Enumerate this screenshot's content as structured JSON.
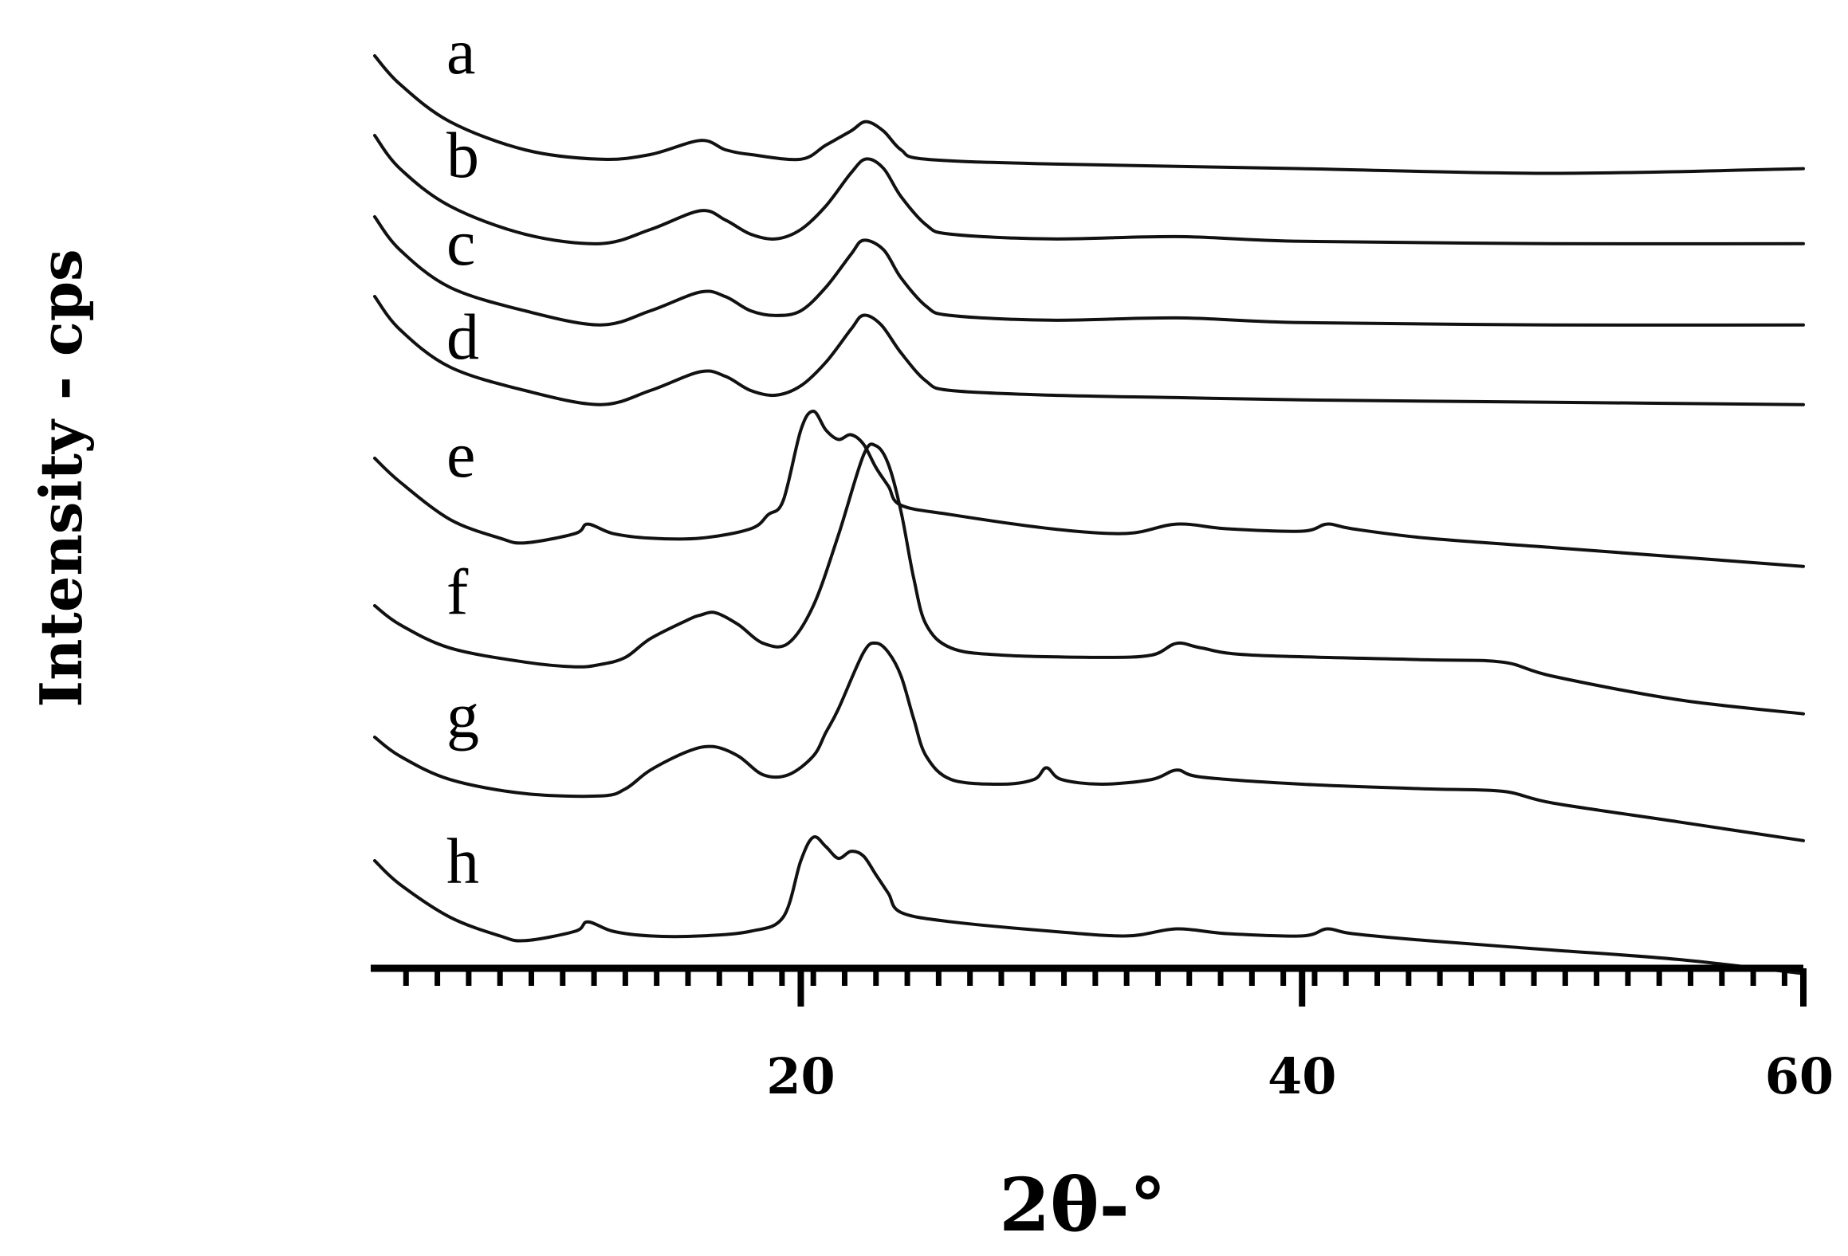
{
  "chart_data": {
    "type": "line",
    "title": "",
    "xlabel": "2θ-°",
    "ylabel": "Intensity - cps",
    "xlim": [
      3,
      60
    ],
    "x_ticks": [
      20,
      40,
      60
    ],
    "x_minor_step": 1.25,
    "grid": false,
    "legend": "inline labels left of each trace",
    "y_units": "relative (stacked, arbitrary offsets)",
    "series": [
      {
        "name": "a",
        "points": [
          [
            3,
            100
          ],
          [
            4,
            94
          ],
          [
            6,
            86
          ],
          [
            9,
            80
          ],
          [
            12,
            78
          ],
          [
            14,
            79
          ],
          [
            16,
            82
          ],
          [
            17,
            80
          ],
          [
            18,
            79
          ],
          [
            20,
            78
          ],
          [
            21,
            81
          ],
          [
            22,
            84
          ],
          [
            22.6,
            86
          ],
          [
            23.3,
            84
          ],
          [
            24,
            80
          ],
          [
            25,
            78
          ],
          [
            30,
            77
          ],
          [
            40,
            76
          ],
          [
            50,
            75
          ],
          [
            60,
            76
          ]
        ]
      },
      {
        "name": "b",
        "points": [
          [
            3,
            100
          ],
          [
            4,
            93
          ],
          [
            6,
            85
          ],
          [
            9,
            79
          ],
          [
            12,
            77
          ],
          [
            14,
            80
          ],
          [
            16,
            84
          ],
          [
            17,
            82
          ],
          [
            18,
            79
          ],
          [
            19,
            78
          ],
          [
            20,
            80
          ],
          [
            21,
            85
          ],
          [
            22,
            92
          ],
          [
            22.6,
            95
          ],
          [
            23.3,
            93
          ],
          [
            24,
            87
          ],
          [
            25,
            81
          ],
          [
            26,
            79
          ],
          [
            30,
            78
          ],
          [
            35,
            78.5
          ],
          [
            40,
            77.5
          ],
          [
            50,
            77
          ],
          [
            60,
            77
          ]
        ]
      },
      {
        "name": "c",
        "points": [
          [
            3,
            100
          ],
          [
            4,
            93
          ],
          [
            6,
            85
          ],
          [
            9,
            80
          ],
          [
            12,
            77
          ],
          [
            14,
            80
          ],
          [
            16,
            84
          ],
          [
            17,
            83
          ],
          [
            18,
            80
          ],
          [
            19,
            79
          ],
          [
            20,
            80
          ],
          [
            21,
            85
          ],
          [
            22,
            92
          ],
          [
            22.5,
            95
          ],
          [
            23.3,
            93
          ],
          [
            24,
            87
          ],
          [
            25,
            81
          ],
          [
            26,
            79
          ],
          [
            30,
            78
          ],
          [
            35,
            78.5
          ],
          [
            40,
            77.5
          ],
          [
            50,
            77
          ],
          [
            60,
            77
          ]
        ]
      },
      {
        "name": "d",
        "points": [
          [
            3,
            100
          ],
          [
            4,
            93
          ],
          [
            6,
            85
          ],
          [
            9,
            80
          ],
          [
            12,
            77
          ],
          [
            14,
            80
          ],
          [
            16,
            84
          ],
          [
            17,
            83
          ],
          [
            18,
            80
          ],
          [
            19,
            79
          ],
          [
            20,
            81
          ],
          [
            21,
            86
          ],
          [
            22,
            93
          ],
          [
            22.5,
            96
          ],
          [
            23.2,
            94
          ],
          [
            24,
            88
          ],
          [
            25,
            82
          ],
          [
            26,
            80
          ],
          [
            30,
            79
          ],
          [
            35,
            78.5
          ],
          [
            40,
            78
          ],
          [
            50,
            77.5
          ],
          [
            60,
            77
          ]
        ]
      },
      {
        "name": "e",
        "points": [
          [
            3,
            100
          ],
          [
            4,
            95
          ],
          [
            6,
            87
          ],
          [
            8,
            83
          ],
          [
            9,
            82
          ],
          [
            11,
            84
          ],
          [
            11.5,
            86
          ],
          [
            12.5,
            84
          ],
          [
            14,
            83
          ],
          [
            16,
            83
          ],
          [
            18,
            85
          ],
          [
            18.7,
            88
          ],
          [
            19.3,
            91
          ],
          [
            20,
            106
          ],
          [
            20.5,
            110
          ],
          [
            21,
            106
          ],
          [
            21.5,
            104
          ],
          [
            22,
            105
          ],
          [
            22.5,
            103
          ],
          [
            23,
            98
          ],
          [
            23.5,
            94
          ],
          [
            24,
            90
          ],
          [
            26,
            88
          ],
          [
            30,
            85
          ],
          [
            33,
            84
          ],
          [
            35,
            86
          ],
          [
            37,
            85
          ],
          [
            40,
            84.5
          ],
          [
            41,
            86
          ],
          [
            42,
            85
          ],
          [
            45,
            83
          ],
          [
            50,
            81
          ],
          [
            55,
            79
          ],
          [
            60,
            77
          ]
        ]
      },
      {
        "name": "f",
        "points": [
          [
            3,
            100
          ],
          [
            4,
            96
          ],
          [
            6,
            91
          ],
          [
            9,
            88
          ],
          [
            11,
            87
          ],
          [
            12,
            87.5
          ],
          [
            13,
            89
          ],
          [
            14,
            93
          ],
          [
            15.5,
            97
          ],
          [
            16,
            98
          ],
          [
            16.6,
            98.5
          ],
          [
            17.5,
            96
          ],
          [
            18.5,
            92
          ],
          [
            19.5,
            92
          ],
          [
            20.5,
            100
          ],
          [
            21.5,
            115
          ],
          [
            22.5,
            132
          ],
          [
            23,
            134
          ],
          [
            23.5,
            130
          ],
          [
            24,
            120
          ],
          [
            24.5,
            106
          ],
          [
            25,
            96
          ],
          [
            26,
            91
          ],
          [
            28,
            89.5
          ],
          [
            32,
            89
          ],
          [
            34,
            89.5
          ],
          [
            35,
            92
          ],
          [
            36,
            91
          ],
          [
            38,
            89.5
          ],
          [
            45,
            88.5
          ],
          [
            48,
            88
          ],
          [
            50,
            85
          ],
          [
            55,
            80
          ],
          [
            60,
            77
          ]
        ]
      },
      {
        "name": "g",
        "points": [
          [
            3,
            100
          ],
          [
            4,
            96
          ],
          [
            6,
            91
          ],
          [
            9,
            88
          ],
          [
            12,
            87.5
          ],
          [
            13,
            89
          ],
          [
            14,
            93
          ],
          [
            15.5,
            97
          ],
          [
            16.5,
            98
          ],
          [
            17.5,
            96
          ],
          [
            18.5,
            92
          ],
          [
            19.5,
            92
          ],
          [
            20.5,
            96
          ],
          [
            21,
            101
          ],
          [
            21.5,
            106
          ],
          [
            22.5,
            118
          ],
          [
            23,
            120
          ],
          [
            23.5,
            118
          ],
          [
            24,
            113
          ],
          [
            24.5,
            104
          ],
          [
            25,
            96
          ],
          [
            26,
            91
          ],
          [
            28,
            90
          ],
          [
            29.3,
            91
          ],
          [
            29.8,
            93.5
          ],
          [
            30.4,
            91
          ],
          [
            32,
            90
          ],
          [
            34,
            91
          ],
          [
            35,
            93
          ],
          [
            36,
            91.5
          ],
          [
            40,
            90
          ],
          [
            45,
            89
          ],
          [
            48,
            88.5
          ],
          [
            50,
            86
          ],
          [
            55,
            82
          ],
          [
            60,
            78
          ]
        ]
      },
      {
        "name": "h",
        "points": [
          [
            3,
            100
          ],
          [
            4,
            95
          ],
          [
            6,
            88
          ],
          [
            8,
            84
          ],
          [
            9,
            83
          ],
          [
            11,
            85
          ],
          [
            11.5,
            87
          ],
          [
            12.5,
            85
          ],
          [
            14,
            84
          ],
          [
            16,
            84
          ],
          [
            18,
            85
          ],
          [
            19.3,
            88
          ],
          [
            20,
            100
          ],
          [
            20.5,
            105
          ],
          [
            21,
            103
          ],
          [
            21.5,
            100.5
          ],
          [
            22,
            102
          ],
          [
            22.5,
            101
          ],
          [
            23,
            97
          ],
          [
            23.5,
            93
          ],
          [
            24,
            89
          ],
          [
            26,
            87
          ],
          [
            30,
            85
          ],
          [
            33,
            84
          ],
          [
            35,
            85.5
          ],
          [
            37,
            84.5
          ],
          [
            40,
            84
          ],
          [
            41,
            85.5
          ],
          [
            42,
            84.5
          ],
          [
            45,
            83
          ],
          [
            50,
            81
          ],
          [
            55,
            79
          ],
          [
            60,
            76
          ]
        ]
      }
    ]
  }
}
